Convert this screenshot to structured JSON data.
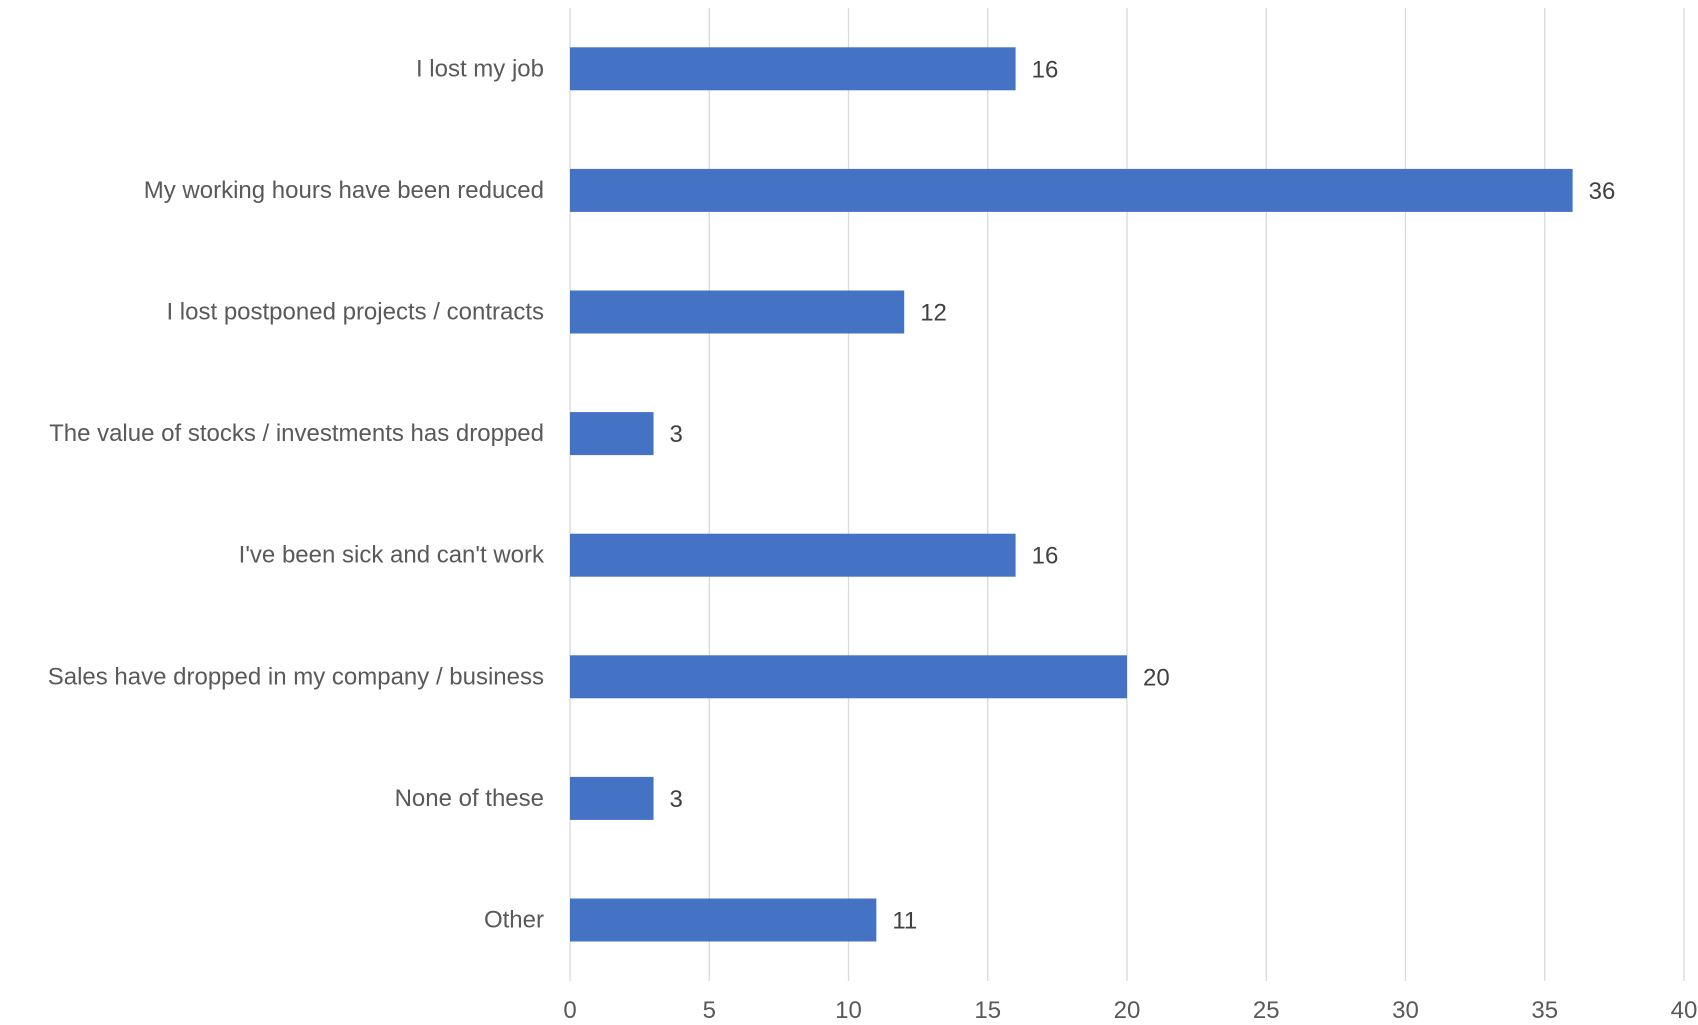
{
  "chart_data": {
    "type": "bar",
    "orientation": "horizontal",
    "categories": [
      "I lost my job",
      "My working hours have been reduced",
      "I lost postponed projects / contracts",
      "The value of stocks / investments has dropped",
      "I've been sick and can't work",
      "Sales have dropped in my company / business",
      "None of these",
      "Other"
    ],
    "values": [
      16,
      36,
      12,
      3,
      16,
      20,
      3,
      11
    ],
    "data_labels": [
      "16",
      "36",
      "12",
      "3",
      "16",
      "20",
      "3",
      "11"
    ],
    "title": "",
    "xlabel": "",
    "ylabel": "",
    "xlim": [
      0,
      40
    ],
    "x_ticks": [
      0,
      5,
      10,
      15,
      20,
      25,
      30,
      35,
      40
    ],
    "x_tick_labels": [
      "0",
      "5",
      "10",
      "15",
      "20",
      "25",
      "30",
      "35",
      "40"
    ],
    "grid": "vertical",
    "legend": "none",
    "colors": {
      "bar": "#4472c4",
      "grid": "#d9d9d9",
      "category_text": "#595959",
      "data_label_text": "#404040"
    }
  }
}
